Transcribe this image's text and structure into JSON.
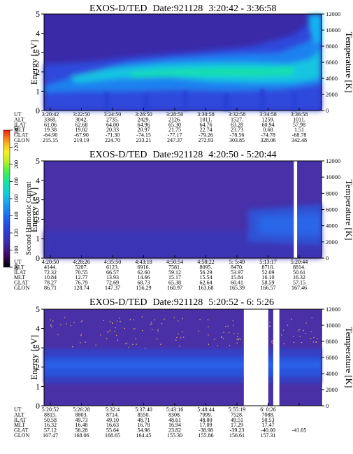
{
  "colorbar": {
    "label": "Second Harmonic Current",
    "ticks": [
      "80",
      "100",
      "120",
      "140",
      "160",
      "180",
      "200",
      "220",
      "240"
    ],
    "colors": [
      "#000000",
      "#3d0a66",
      "#3b2fa8",
      "#2c3fd8",
      "#1e63f0",
      "#1a98f5",
      "#10cfd8",
      "#12e6a0",
      "#4cf050",
      "#b8f020",
      "#f8f020",
      "#f8b818",
      "#f87018",
      "#f01c10"
    ]
  },
  "chart_data": [
    {
      "type": "heatmap",
      "title": "EXOS-D/TED",
      "date_label": "Date:921128",
      "time_range": "3:20:42 - 3:36:58",
      "ylabel": "Energy [eV]",
      "ylabel_right": "Temperature [K]",
      "y_ticks": [
        "0",
        "1",
        "2",
        "3",
        "4",
        "5"
      ],
      "ylim": [
        0,
        5
      ],
      "y2_ticks": [
        "0",
        "2000",
        "4000",
        "6000",
        "8000",
        "10000",
        "12000"
      ],
      "y2lim": [
        0,
        12000
      ],
      "gaps": [],
      "orbit": {
        "labels": [
          "UT",
          "ALT",
          "ILAT",
          "MLT",
          "GLAT",
          "GLON"
        ],
        "columns": [
          [
            "3:20:42",
            "3368.",
            "61.06",
            "19.38",
            "-64.90",
            "215.15"
          ],
          [
            "3:22:50",
            "3042.",
            "62.68",
            "19.82",
            "-67.90",
            "219.19"
          ],
          [
            "3:24:50",
            "2735.",
            "64.00",
            "20.33",
            "-71.30",
            "224.70"
          ],
          [
            "3:26:50",
            "2429.",
            "64.96",
            "20.97",
            "-74.15",
            "233.21"
          ],
          [
            "3:28:50",
            "2126.",
            "65.30",
            "21.75",
            "-77.17",
            "247.37"
          ],
          [
            "3:30:58",
            "1811.",
            "64.76",
            "22.74",
            "-79.26",
            "272.93"
          ],
          [
            "3:32:58",
            "1527.",
            "63.28",
            "23.73",
            "-78.56",
            "303.85"
          ],
          [
            "3:34:58",
            "1259.",
            "60.94",
            "0.68",
            "-74.78",
            "328.06"
          ],
          [
            "3:36:58",
            "1011.",
            "57.98",
            "1.51",
            "-68.78",
            "342.48"
          ]
        ]
      }
    },
    {
      "type": "heatmap",
      "title": "EXOS-D/TED",
      "date_label": "Date:921128",
      "time_range": "4:20:50 - 5:20:44",
      "ylabel": "Energy [eV]",
      "ylabel_right": "Temperature [K]",
      "y_ticks": [
        "0",
        "1",
        "2",
        "3",
        "4",
        "5"
      ],
      "ylim": [
        0,
        5
      ],
      "y2_ticks": [
        "0",
        "2000",
        "4000",
        "6000",
        "8000",
        "10000",
        "12000"
      ],
      "y2lim": [
        0,
        12000
      ],
      "gaps": [
        [
          0.9,
          0.912
        ]
      ],
      "orbit": {
        "labels": [
          "UT",
          "ALT",
          "ILAT",
          "MLT",
          "GLAT",
          "GLON"
        ],
        "columns": [
          [
            "4:20:50",
            "4144.",
            "72.32",
            "10.84",
            "78.27",
            "86.71"
          ],
          [
            "4:28:26",
            "5207.",
            "70.55",
            "12.77",
            "76.79",
            "128.74"
          ],
          [
            "4:35:50",
            "6123.",
            "66.57",
            "13.93",
            "72.69",
            "147.37"
          ],
          [
            "4:43:18",
            "6916.",
            "62.60",
            "14.66",
            "68.73",
            "156.29"
          ],
          [
            "4:50:54",
            "7581.",
            "59.12",
            "15.17",
            "65.38",
            "160.97"
          ],
          [
            "4:58:22",
            "8095.",
            "56.29",
            "15.54",
            "62.64",
            "163.68"
          ],
          [
            "5: 5:49",
            "8470.",
            "53.97",
            "15.84",
            "60.41",
            "165.39"
          ],
          [
            "5:13:17",
            "8710.",
            "52.09",
            "16.10",
            "58.59",
            "166.57"
          ],
          [
            "5:20:44",
            "8814.",
            "50.61",
            "16.32",
            "57.15",
            "167.46"
          ]
        ]
      }
    },
    {
      "type": "heatmap",
      "title": "EXOS-D/TED",
      "date_label": "Date:921128",
      "time_range": "5:20:52 - 6: 5:26",
      "ylabel": "Energy [eV]",
      "ylabel_right": "Temperature [K]",
      "y_ticks": [
        "0",
        "1",
        "2",
        "3",
        "4",
        "5"
      ],
      "ylim": [
        0,
        5
      ],
      "y2_ticks": [
        "0",
        "2000",
        "4000",
        "6000",
        "8000",
        "10000",
        "12000"
      ],
      "y2lim": [
        0,
        12000
      ],
      "gaps": [
        [
          0.72,
          0.808
        ],
        [
          0.826,
          0.848
        ]
      ],
      "orbit": {
        "labels": [
          "UT",
          "ALT",
          "ILAT",
          "MLT",
          "GLAT",
          "GLON"
        ],
        "columns": [
          [
            "5:20:52",
            "8815.",
            "50.58",
            "16.32",
            "57.12",
            "167.47"
          ],
          [
            "5:26:28",
            "8803.",
            "49.73",
            "16.48",
            "56.28",
            "168.06"
          ],
          [
            "5:32:4",
            "8714.",
            "49.10",
            "16.63",
            "55.64",
            "168.65"
          ],
          [
            "5:37:40",
            "8550.",
            "48.71",
            "16.78",
            "54.96",
            "164.45"
          ],
          [
            "5:43:16",
            "8308.",
            "48.61",
            "16.94",
            "23.82",
            "155.30"
          ],
          [
            "5:48:44",
            "7999.",
            "48.80",
            "17.09",
            "-38.98",
            "155.86"
          ],
          [
            "5:55:19",
            "7528.",
            "49.51",
            "17.29",
            "-39.23",
            "156.61"
          ],
          [
            "6: 0:26",
            "7088.",
            "50.53",
            "17.47",
            "-40.00",
            "157.31"
          ],
          [
            "",
            "",
            "",
            "",
            "-41.05",
            ""
          ]
        ]
      }
    }
  ]
}
